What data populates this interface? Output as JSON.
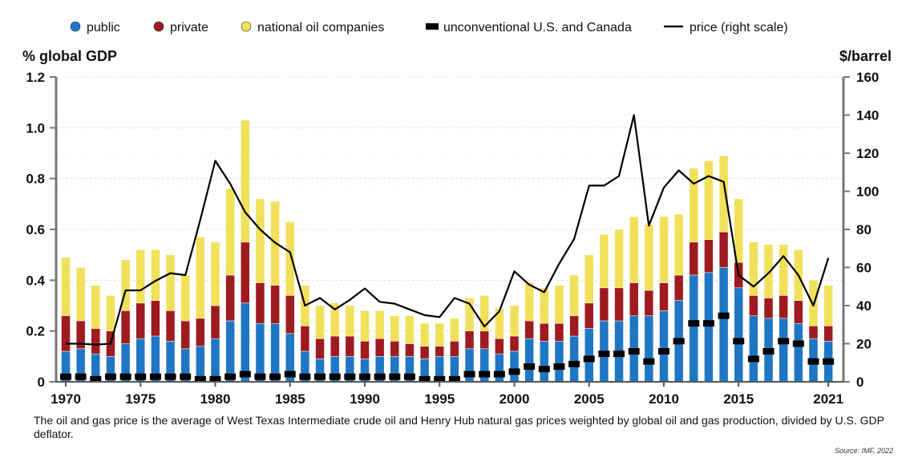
{
  "chart_data": {
    "type": "bar",
    "stacked": true,
    "x": [
      1970,
      1971,
      1972,
      1973,
      1974,
      1975,
      1976,
      1977,
      1978,
      1979,
      1980,
      1981,
      1982,
      1983,
      1984,
      1985,
      1986,
      1987,
      1988,
      1989,
      1990,
      1991,
      1992,
      1993,
      1994,
      1995,
      1996,
      1997,
      1998,
      1999,
      2000,
      2001,
      2002,
      2003,
      2004,
      2005,
      2006,
      2007,
      2008,
      2009,
      2010,
      2011,
      2012,
      2013,
      2014,
      2015,
      2016,
      2017,
      2018,
      2019,
      2020,
      2021
    ],
    "x_tick_labels": [
      "1970",
      "1975",
      "1980",
      "1985",
      "1990",
      "1995",
      "2000",
      "2005",
      "2010",
      "2015",
      "2021"
    ],
    "x_tick_values": [
      1970,
      1975,
      1980,
      1985,
      1990,
      1995,
      2000,
      2005,
      2010,
      2015,
      2021
    ],
    "series": [
      {
        "name": "public",
        "type": "bar",
        "axis": "left",
        "color": "#1f77c4",
        "values": [
          0.12,
          0.13,
          0.11,
          0.1,
          0.15,
          0.17,
          0.18,
          0.16,
          0.13,
          0.14,
          0.17,
          0.24,
          0.31,
          0.23,
          0.23,
          0.19,
          0.12,
          0.09,
          0.1,
          0.1,
          0.09,
          0.1,
          0.1,
          0.1,
          0.09,
          0.1,
          0.1,
          0.13,
          0.13,
          0.11,
          0.12,
          0.17,
          0.16,
          0.16,
          0.18,
          0.21,
          0.24,
          0.24,
          0.26,
          0.26,
          0.28,
          0.32,
          0.42,
          0.43,
          0.45,
          0.37,
          0.26,
          0.25,
          0.25,
          0.23,
          0.17,
          0.16
        ]
      },
      {
        "name": "private",
        "type": "bar",
        "axis": "left",
        "color": "#9e1b20",
        "values": [
          0.14,
          0.11,
          0.1,
          0.1,
          0.13,
          0.14,
          0.14,
          0.12,
          0.11,
          0.11,
          0.13,
          0.18,
          0.24,
          0.16,
          0.15,
          0.15,
          0.1,
          0.08,
          0.08,
          0.08,
          0.07,
          0.07,
          0.06,
          0.05,
          0.05,
          0.04,
          0.06,
          0.07,
          0.07,
          0.06,
          0.06,
          0.07,
          0.07,
          0.07,
          0.08,
          0.1,
          0.13,
          0.13,
          0.13,
          0.1,
          0.11,
          0.1,
          0.13,
          0.13,
          0.14,
          0.1,
          0.08,
          0.08,
          0.09,
          0.09,
          0.05,
          0.06
        ]
      },
      {
        "name": "national oil companies",
        "type": "bar",
        "axis": "left",
        "color": "#f1e05a",
        "values": [
          0.23,
          0.21,
          0.17,
          0.14,
          0.2,
          0.21,
          0.2,
          0.22,
          0.18,
          0.32,
          0.25,
          0.34,
          0.48,
          0.33,
          0.33,
          0.29,
          0.16,
          0.13,
          0.13,
          0.12,
          0.12,
          0.11,
          0.1,
          0.11,
          0.09,
          0.09,
          0.09,
          0.13,
          0.14,
          0.12,
          0.12,
          0.15,
          0.14,
          0.15,
          0.16,
          0.19,
          0.21,
          0.23,
          0.26,
          0.26,
          0.26,
          0.24,
          0.29,
          0.31,
          0.3,
          0.25,
          0.21,
          0.21,
          0.2,
          0.2,
          0.18,
          0.16
        ]
      },
      {
        "name": "unconventional U.S. and Canada",
        "type": "marker",
        "axis": "left",
        "color": "#000000",
        "values": [
          0.02,
          0.02,
          0.01,
          0.02,
          0.02,
          0.02,
          0.02,
          0.02,
          0.02,
          0.01,
          0.01,
          0.02,
          0.03,
          0.02,
          0.02,
          0.03,
          0.02,
          0.02,
          0.02,
          0.02,
          0.02,
          0.02,
          0.02,
          0.02,
          0.01,
          0.01,
          0.01,
          0.03,
          0.03,
          0.03,
          0.04,
          0.06,
          0.05,
          0.06,
          0.07,
          0.09,
          0.11,
          0.11,
          0.12,
          0.08,
          0.12,
          0.16,
          0.23,
          0.23,
          0.26,
          0.16,
          0.09,
          0.12,
          0.16,
          0.15,
          0.08,
          0.08
        ]
      },
      {
        "name": "price (right scale)",
        "type": "line",
        "axis": "right",
        "color": "#000000",
        "values": [
          20,
          20,
          19.5,
          20,
          48,
          48,
          53,
          57,
          56,
          85,
          116,
          104,
          89,
          80,
          73,
          68,
          40,
          44,
          38,
          43,
          49,
          42,
          41,
          38,
          35,
          34,
          44,
          41,
          29,
          37,
          58,
          51,
          47,
          62,
          75,
          103,
          103,
          108,
          140,
          82,
          102,
          111,
          104,
          108,
          105,
          56,
          50,
          57,
          66,
          56,
          40,
          65
        ]
      }
    ],
    "y_left": {
      "label": "% global GDP",
      "min": 0,
      "max": 1.2,
      "ticks": [
        0,
        0.2,
        0.4,
        0.6,
        0.8,
        1.0,
        1.2
      ],
      "tick_labels": [
        "0",
        "0.2",
        "0.4",
        "0.6",
        "0.8",
        "1.0",
        "1.2"
      ]
    },
    "y_right": {
      "label": "$/barrel",
      "min": 0,
      "max": 160,
      "ticks": [
        0,
        20,
        40,
        60,
        80,
        100,
        120,
        140,
        160
      ],
      "tick_labels": [
        "0",
        "20",
        "40",
        "60",
        "80",
        "100",
        "120",
        "140",
        "160"
      ]
    },
    "grid": true,
    "legend_position": "top"
  },
  "legend": [
    {
      "label": "public",
      "kind": "dot",
      "color": "#1f77c4"
    },
    {
      "label": "private",
      "kind": "dot",
      "color": "#9e1b20"
    },
    {
      "label": "national oil companies",
      "kind": "dot",
      "color": "#f1e05a"
    },
    {
      "label": "unconventional U.S. and Canada",
      "kind": "dash",
      "color": "#000000"
    },
    {
      "label": "price (right scale)",
      "kind": "line",
      "color": "#000000"
    }
  ],
  "caption": "The oil and gas price is the average of West Texas Intermediate crude oil and Henry Hub natural gas prices weighted by global oil and gas production, divided by U.S. GDP deflator.",
  "source": "Source: IMF, 2022"
}
